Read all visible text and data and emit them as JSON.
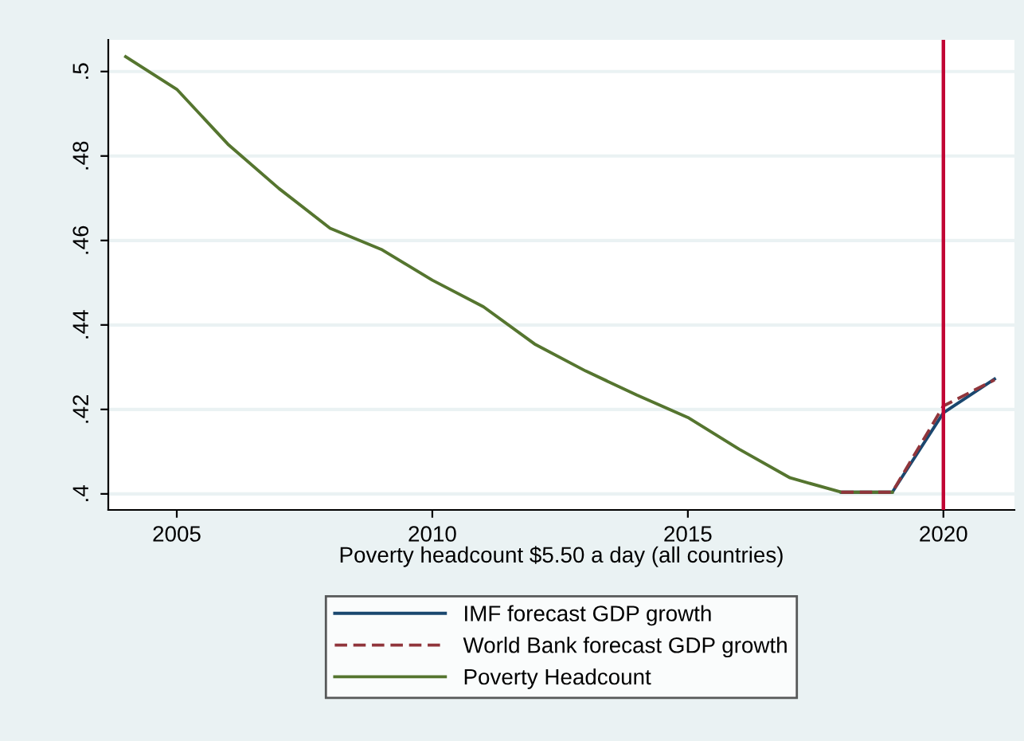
{
  "chart_data": {
    "type": "line",
    "xlabel": "Poverty headcount $5.50 a day (all countries)",
    "series": [
      {
        "name": "IMF forecast GDP growth",
        "color": "#1a476f",
        "line_style": "solid",
        "x": [
          2018,
          2019,
          2020,
          2021
        ],
        "values": [
          0.4004,
          0.4004,
          0.4192,
          0.4272
        ]
      },
      {
        "name": "World Bank forecast GDP growth",
        "color": "#90353b",
        "line_style": "dashed",
        "x": [
          2018,
          2019,
          2020,
          2021
        ],
        "values": [
          0.4004,
          0.4004,
          0.4208,
          0.427
        ]
      },
      {
        "name": "Poverty Headcount",
        "color": "#55752f",
        "line_style": "solid",
        "x": [
          2004,
          2005,
          2006,
          2007,
          2008,
          2009,
          2010,
          2011,
          2012,
          2013,
          2014,
          2015,
          2016,
          2017,
          2018,
          2019
        ],
        "values": [
          0.5035,
          0.4958,
          0.4828,
          0.4723,
          0.4629,
          0.4579,
          0.4506,
          0.4443,
          0.4355,
          0.4291,
          0.4234,
          0.4181,
          0.4106,
          0.4038,
          0.4004,
          0.4004
        ]
      }
    ],
    "xlim": [
      2003.66,
      2021.39
    ],
    "ylim": [
      0.3962,
      0.5075
    ],
    "xticks": [
      2005,
      2010,
      2015,
      2020
    ],
    "yticks": [
      {
        "value": 0.4,
        "label": ".4"
      },
      {
        "value": 0.42,
        "label": ".42"
      },
      {
        "value": 0.44,
        "label": ".44"
      },
      {
        "value": 0.46,
        "label": ".46"
      },
      {
        "value": 0.48,
        "label": ".48"
      },
      {
        "value": 0.5,
        "label": ".5"
      }
    ],
    "ref_lines": [
      {
        "axis": "x",
        "value": 2020,
        "color": "#c10534"
      }
    ],
    "grid": "y",
    "legend": "bottom"
  }
}
